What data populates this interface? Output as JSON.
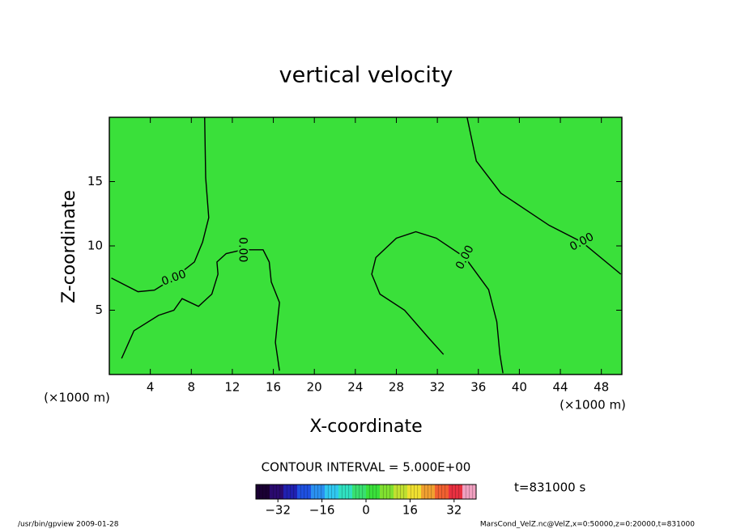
{
  "chart_data": {
    "type": "contour",
    "title": "vertical velocity",
    "xlabel": "X-coordinate",
    "ylabel": "Z-coordinate",
    "xunit": "(×1000 m)",
    "xlim": [
      0,
      50
    ],
    "ylim": [
      0,
      20
    ],
    "xticks": [
      4,
      8,
      12,
      16,
      20,
      24,
      28,
      32,
      36,
      40,
      44,
      48
    ],
    "yticks": [
      5,
      10,
      15
    ],
    "field_color": "#3ae03a",
    "contours": [
      {
        "level": 0,
        "label": "0.00",
        "x": [
          9.3,
          9.4,
          9.7,
          9.1,
          8.3,
          6.3,
          4.4,
          2.8,
          0.2
        ],
        "y": [
          20,
          15.3,
          12.2,
          10.3,
          8.75,
          7.5,
          6.56,
          6.44,
          7.5
        ]
      },
      {
        "level": 0,
        "label": "0.00",
        "x": [
          34.9,
          35.8,
          38.2,
          42.9,
          46.1,
          49.9
        ],
        "y": [
          20,
          16.6,
          14.1,
          11.6,
          10.3,
          7.8
        ]
      },
      {
        "level": 0,
        "label": "0.00",
        "x": [
          32.6,
          31.2,
          28.8,
          26.4,
          25.6,
          26.0,
          28.0,
          29.9,
          31.9,
          34.7,
          37.0,
          37.8,
          38.1,
          38.4
        ],
        "y": [
          1.56,
          2.8,
          5,
          6.25,
          7.8,
          9.1,
          10.6,
          11.1,
          10.6,
          9.1,
          6.6,
          4.1,
          1.56,
          0.1
        ]
      },
      {
        "level": 0,
        "label": "0.00",
        "x": [
          1.2,
          2.4,
          4.8,
          6.3,
          7.1,
          8.7,
          10.0,
          10.6,
          10.5,
          11.4,
          13.0,
          15.0,
          15.6,
          15.8,
          16.6,
          16.4,
          16.2,
          16.6
        ],
        "y": [
          1.25,
          3.4,
          4.6,
          5.0,
          5.9,
          5.3,
          6.25,
          7.8,
          8.75,
          9.4,
          9.7,
          9.7,
          8.75,
          7.2,
          5.6,
          4.1,
          2.5,
          0.3
        ]
      }
    ],
    "contour_interval": "CONTOUR INTERVAL = 5.000E+00",
    "colorbar": {
      "lim": [
        -40,
        40
      ],
      "ticks": [
        {
          "value": -32,
          "label": "−32"
        },
        {
          "value": -16,
          "label": "−16"
        },
        0,
        16,
        32
      ],
      "colors": [
        "#1a0033",
        "#2a0a6e",
        "#2020b0",
        "#1e50e0",
        "#2a90f0",
        "#30c8f0",
        "#30e0c0",
        "#38e070",
        "#3ae03a",
        "#80e030",
        "#c0e030",
        "#f0e030",
        "#f0a030",
        "#f06030",
        "#e83040",
        "#f0a0c0"
      ]
    },
    "time": "t=831000 s",
    "footer_left": "/usr/bin/gpview  2009-01-28",
    "footer_right": "MarsCond_VelZ.nc@VelZ,x=0:50000,z=0:20000,t=831000"
  }
}
